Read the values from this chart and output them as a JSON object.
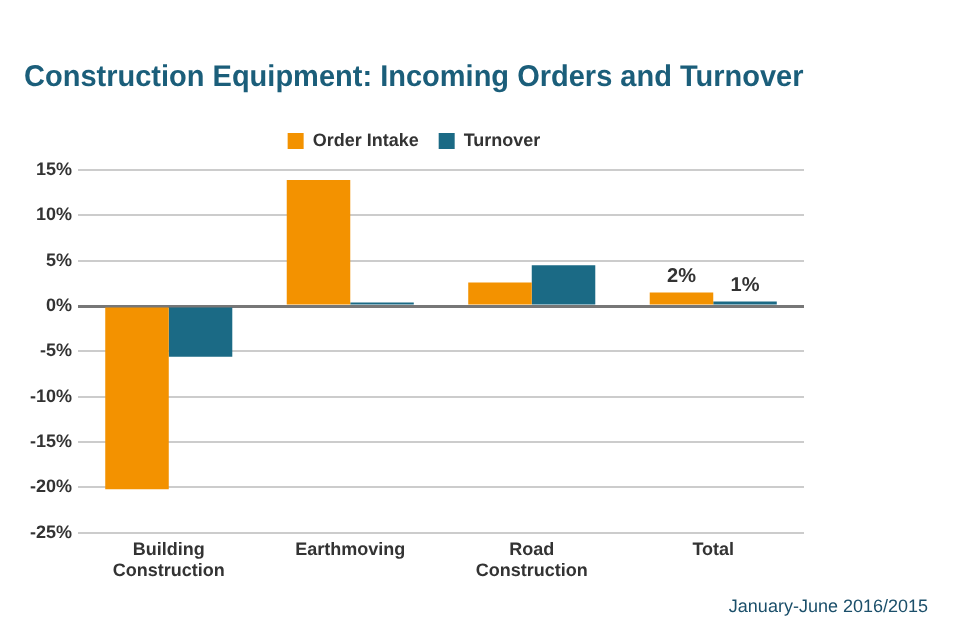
{
  "chart_data": {
    "type": "bar",
    "title": "Construction Equipment: Incoming Orders and Turnover",
    "categories": [
      "Building Construction",
      "Earthmoving",
      "Road Construction",
      "Total"
    ],
    "series": [
      {
        "name": "Order Intake",
        "color": "#f39200",
        "values": [
          -20.2,
          13.9,
          2.6,
          1.5
        ],
        "value_labels": [
          null,
          null,
          null,
          "2%"
        ]
      },
      {
        "name": "Turnover",
        "color": "#1b6a85",
        "values": [
          -5.6,
          0.4,
          4.5,
          0.5
        ],
        "value_labels": [
          null,
          null,
          null,
          "1%"
        ]
      }
    ],
    "ylim": [
      -25,
      15
    ],
    "yticks": [
      {
        "value": -25,
        "label": "-25%"
      },
      {
        "value": -20,
        "label": "-20%"
      },
      {
        "value": -15,
        "label": "-15%"
      },
      {
        "value": -10,
        "label": "-10%"
      },
      {
        "value": -5,
        "label": "-5%"
      },
      {
        "value": 0,
        "label": "0%"
      },
      {
        "value": 5,
        "label": "5%"
      },
      {
        "value": 10,
        "label": "10%"
      },
      {
        "value": 15,
        "label": "15%"
      }
    ],
    "grid": "y",
    "legend": "top",
    "annotations": [
      "January-June 2016/2015"
    ]
  }
}
